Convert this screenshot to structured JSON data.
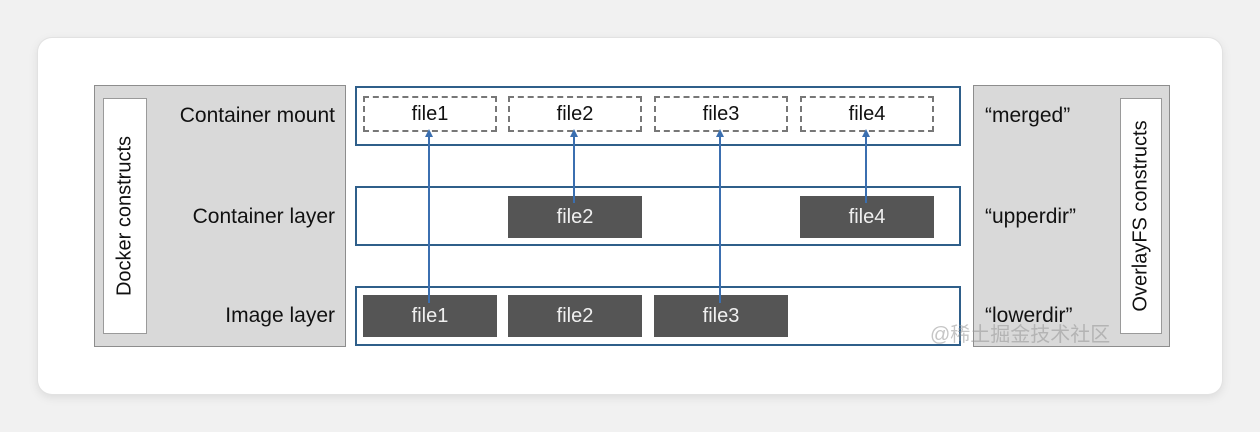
{
  "docker": {
    "label": "Docker constructs"
  },
  "overlay": {
    "label": "OverlayFS constructs",
    "merged": "“merged”",
    "upperdir": "“upperdir”",
    "lowerdir": "“lowerdir”"
  },
  "rows": {
    "mount": "Container mount",
    "container": "Container layer",
    "image": "Image layer"
  },
  "mount_files": [
    "file1",
    "file2",
    "file3",
    "file4"
  ],
  "container_files": [
    "file2",
    "file4"
  ],
  "image_files": [
    "file1",
    "file2",
    "file3"
  ],
  "watermark": "@稀土掘金技术社区",
  "colors": {
    "layer_border": "#2f5f8a",
    "arrow": "#3b6fb0",
    "file_fill": "#555555"
  }
}
